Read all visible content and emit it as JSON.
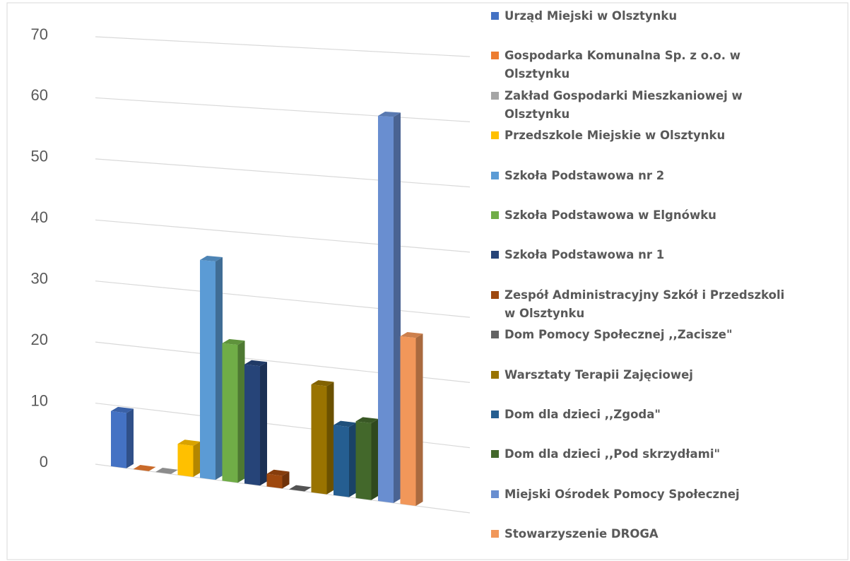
{
  "chart_data": {
    "type": "bar3d",
    "categories": [
      null
    ],
    "series": [
      {
        "name": "Urząd Miejski w Olsztynku",
        "color": "#4472c4",
        "values": [
          9
        ]
      },
      {
        "name": "Gospodarka Komunalna Sp. z o.o. w Olsztynku",
        "color": "#ed7d31",
        "values": [
          0
        ]
      },
      {
        "name": "Zakład Gospodarki Mieszkaniowej w Olsztynku",
        "color": "#a5a5a5",
        "values": [
          0
        ]
      },
      {
        "name": "Przedszkole Miejskie w Olsztynku",
        "color": "#ffc000",
        "values": [
          5
        ]
      },
      {
        "name": "Szkoła Podstawowa nr 2",
        "color": "#5b9bd5",
        "values": [
          35
        ]
      },
      {
        "name": "Szkoła Podstawowa w Elgnówku",
        "color": "#70ad47",
        "values": [
          22
        ]
      },
      {
        "name": "Szkoła Podstawowa nr 1",
        "color": "#264478",
        "values": [
          19
        ]
      },
      {
        "name": "Zespół Administracyjny Szkół i Przedszkoli w Olsztynku",
        "color": "#9e480e",
        "values": [
          2
        ]
      },
      {
        "name": "Dom Pomocy Społecznej ,,Zacisze\"",
        "color": "#636363",
        "values": [
          0
        ]
      },
      {
        "name": "Warsztaty Terapii Zajęciowej",
        "color": "#997300",
        "values": [
          17
        ]
      },
      {
        "name": "Dom dla dzieci ,,Zgoda\"",
        "color": "#255e91",
        "values": [
          11
        ]
      },
      {
        "name": "Dom dla dzieci ,,Pod skrzydłami\"",
        "color": "#43682b",
        "values": [
          12
        ]
      },
      {
        "name": "Miejski Ośrodek Pomocy Społecznej",
        "color": "#698ed0",
        "values": [
          60
        ]
      },
      {
        "name": "Stowarzyszenie DROGA",
        "color": "#f1975a",
        "values": [
          26
        ]
      }
    ],
    "ylim": [
      0,
      70
    ],
    "yticks": [
      0,
      10,
      20,
      30,
      40,
      50,
      60,
      70
    ],
    "grid": true,
    "legend": "right"
  }
}
